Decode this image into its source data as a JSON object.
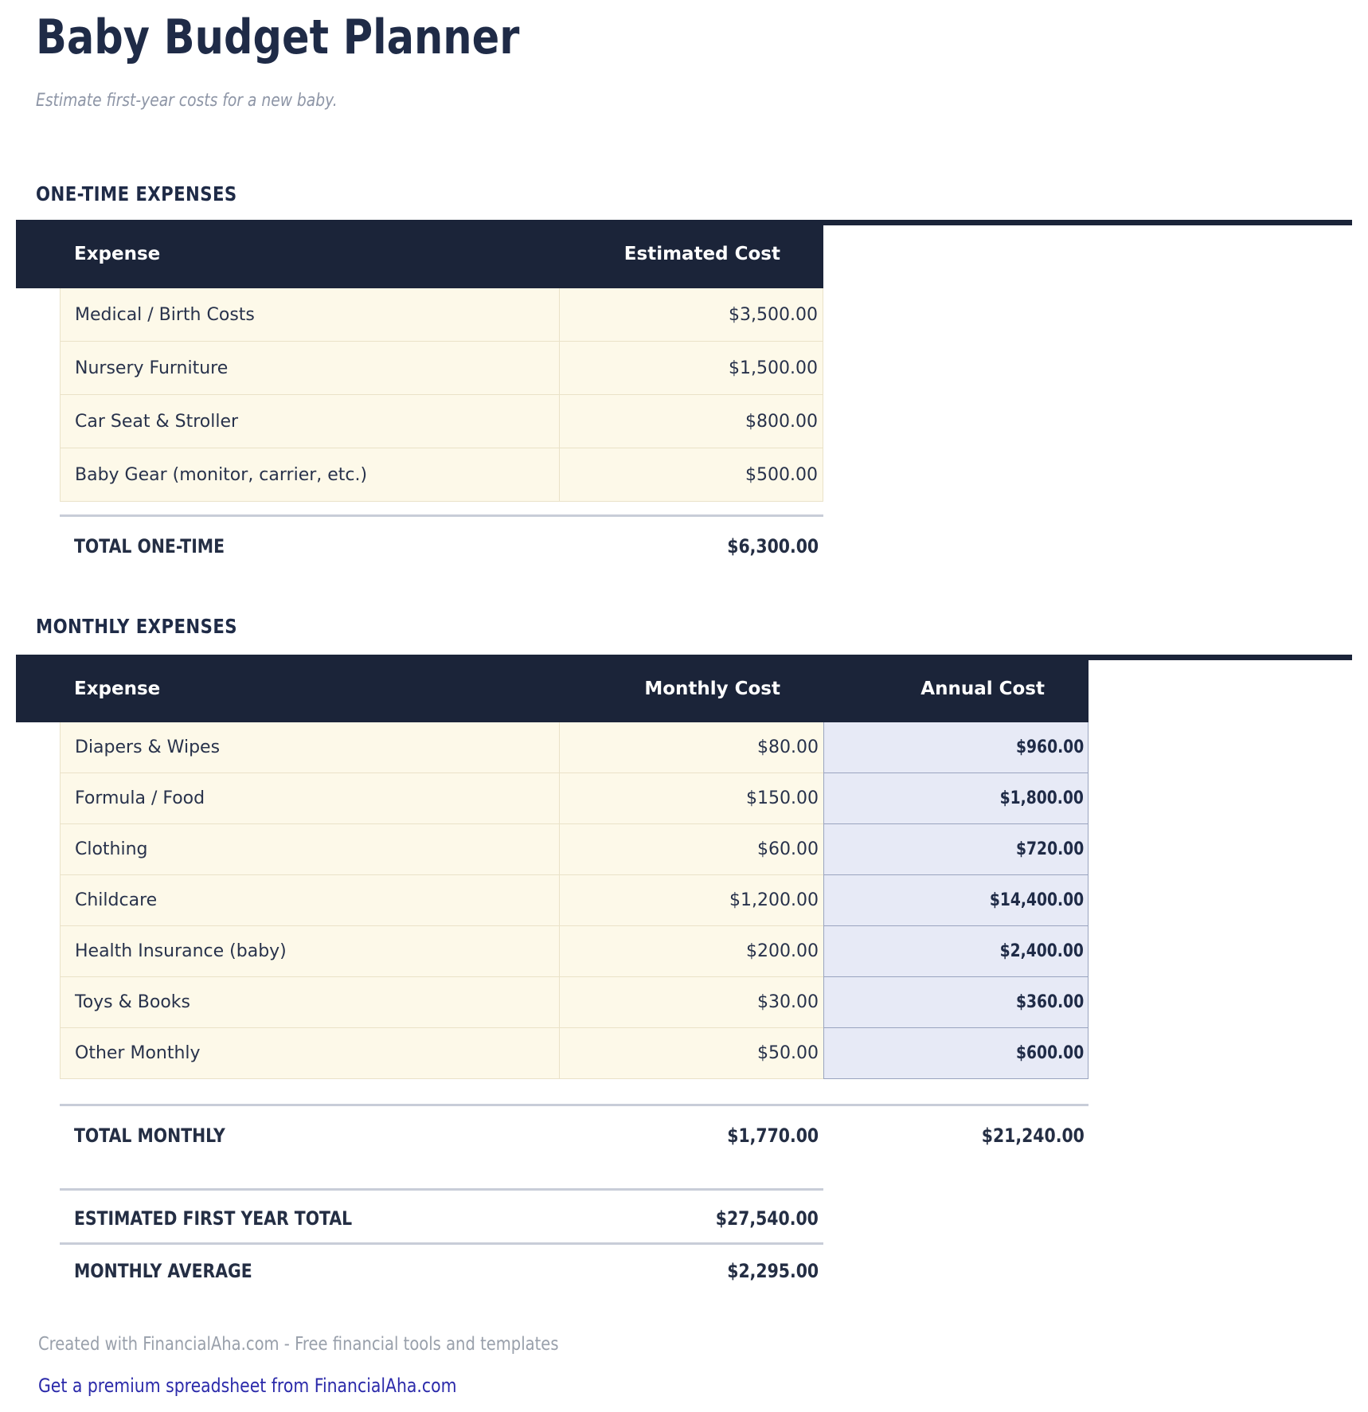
{
  "page": {
    "title": "Baby Budget Planner",
    "subtitle": "Estimate first-year costs for a new baby.",
    "footer_note": "Created with FinancialAha.com - Free financial tools and templates",
    "footer_link": "Get a premium spreadsheet from FinancialAha.com"
  },
  "colors": {
    "header_navy": "#1b2439",
    "heading_text": "#1f2b47",
    "body_text": "#28324b",
    "cream_cell_bg": "#fdf9e9",
    "cream_cell_border": "#eae2c8",
    "annual_cell_bg": "#e7eaf6",
    "annual_cell_border": "#9aa4bf",
    "divider_gray": "#c8cdd8",
    "muted_gray": "#99a0ab",
    "link_blue": "#2b2aaa"
  },
  "one_time": {
    "heading": "ONE-TIME EXPENSES",
    "columns": [
      "Expense",
      "Estimated Cost"
    ],
    "rows": [
      {
        "label": "Medical / Birth Costs",
        "cost": "$3,500.00"
      },
      {
        "label": "Nursery Furniture",
        "cost": "$1,500.00"
      },
      {
        "label": "Car Seat & Stroller",
        "cost": "$800.00"
      },
      {
        "label": "Baby Gear (monitor, carrier, etc.)",
        "cost": "$500.00"
      }
    ],
    "total": {
      "label": "TOTAL ONE-TIME",
      "cost": "$6,300.00"
    }
  },
  "monthly": {
    "heading": "MONTHLY EXPENSES",
    "columns": [
      "Expense",
      "Monthly Cost",
      "Annual Cost"
    ],
    "rows": [
      {
        "label": "Diapers & Wipes",
        "monthly": "$80.00",
        "annual": "$960.00"
      },
      {
        "label": "Formula / Food",
        "monthly": "$150.00",
        "annual": "$1,800.00"
      },
      {
        "label": "Clothing",
        "monthly": "$60.00",
        "annual": "$720.00"
      },
      {
        "label": "Childcare",
        "monthly": "$1,200.00",
        "annual": "$14,400.00"
      },
      {
        "label": "Health Insurance (baby)",
        "monthly": "$200.00",
        "annual": "$2,400.00"
      },
      {
        "label": "Toys & Books",
        "monthly": "$30.00",
        "annual": "$360.00"
      },
      {
        "label": "Other Monthly",
        "monthly": "$50.00",
        "annual": "$600.00"
      }
    ],
    "total": {
      "label": "TOTAL MONTHLY",
      "monthly": "$1,770.00",
      "annual": "$21,240.00"
    },
    "first_year": {
      "label": "ESTIMATED FIRST YEAR TOTAL",
      "value": "$27,540.00"
    },
    "monthly_average": {
      "label": "MONTHLY AVERAGE",
      "value": "$2,295.00"
    }
  }
}
